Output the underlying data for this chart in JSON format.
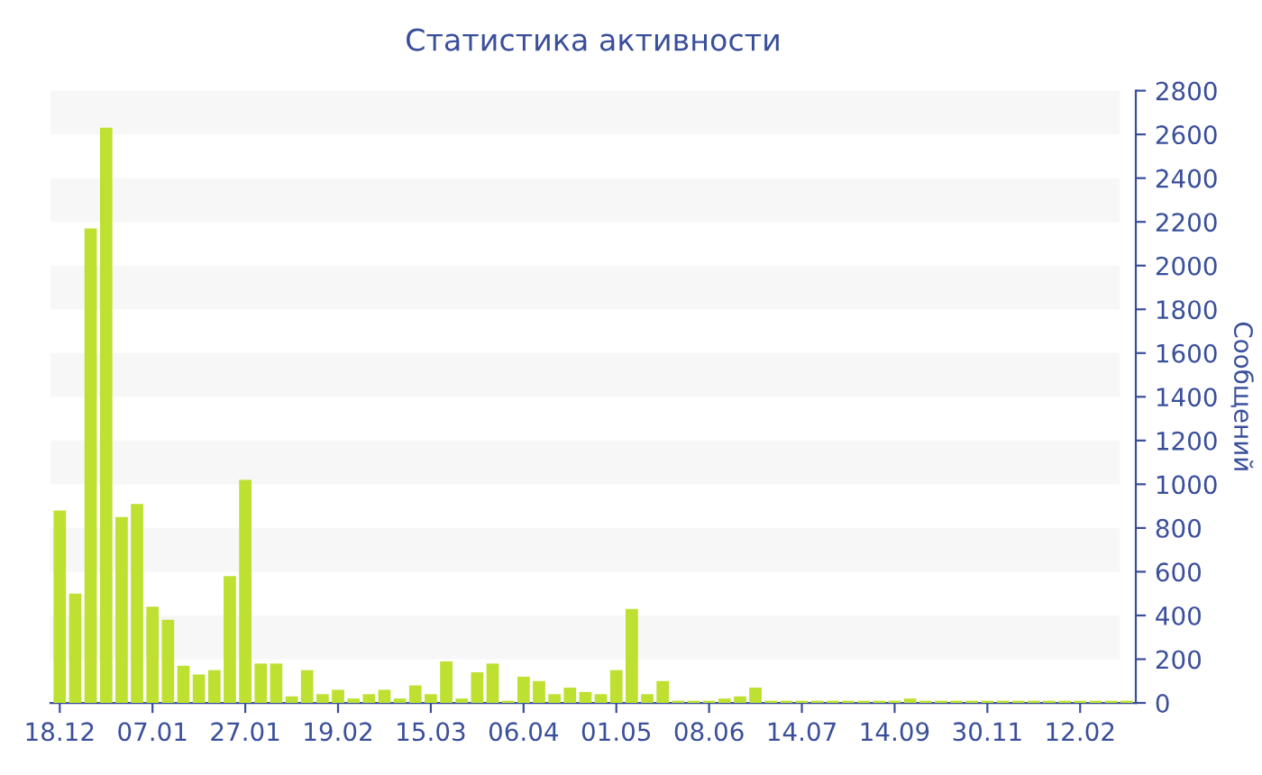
{
  "chart_data": {
    "type": "bar",
    "title": "Статистика активности",
    "ylabel": "Сообщений",
    "categories": [
      "18.12",
      null,
      null,
      null,
      null,
      null,
      "07.01",
      null,
      null,
      null,
      null,
      null,
      "27.01",
      null,
      null,
      null,
      null,
      null,
      "19.02",
      null,
      null,
      null,
      null,
      null,
      "15.03",
      null,
      null,
      null,
      null,
      null,
      "06.04",
      null,
      null,
      null,
      null,
      null,
      "01.05",
      null,
      null,
      null,
      null,
      null,
      "08.06",
      null,
      null,
      null,
      null,
      null,
      "14.07",
      null,
      null,
      null,
      null,
      null,
      "14.09",
      null,
      null,
      null,
      null,
      null,
      "30.11",
      null,
      null,
      null,
      null,
      null,
      "12.02",
      null,
      null,
      null
    ],
    "values": [
      880,
      500,
      2170,
      2630,
      850,
      910,
      440,
      380,
      170,
      130,
      150,
      580,
      1020,
      180,
      180,
      30,
      150,
      40,
      60,
      20,
      40,
      60,
      20,
      80,
      40,
      190,
      20,
      140,
      180,
      10,
      120,
      100,
      40,
      70,
      50,
      40,
      150,
      430,
      40,
      100,
      10,
      10,
      10,
      20,
      30,
      70,
      10,
      10,
      10,
      10,
      10,
      10,
      10,
      10,
      10,
      20,
      10,
      10,
      10,
      10,
      10,
      10,
      10,
      10,
      10,
      10,
      10,
      10,
      10,
      10
    ],
    "color": "#bde031",
    "ylim": [
      0,
      2800
    ],
    "yticks": [
      0,
      200,
      400,
      600,
      800,
      1000,
      1200,
      1400,
      1600,
      1800,
      2000,
      2200,
      2400,
      2600,
      2800
    ],
    "bands": [
      {
        "axis": "y",
        "from": 200,
        "to": 400,
        "color": "#f7f7f7"
      },
      {
        "axis": "y",
        "from": 600,
        "to": 800,
        "color": "#f7f7f7"
      },
      {
        "axis": "y",
        "from": 1000,
        "to": 1200,
        "color": "#f7f7f7"
      },
      {
        "axis": "y",
        "from": 1400,
        "to": 1600,
        "color": "#f7f7f7"
      },
      {
        "axis": "y",
        "from": 1800,
        "to": 2000,
        "color": "#f7f7f7"
      },
      {
        "axis": "y",
        "from": 2200,
        "to": 2400,
        "color": "#f7f7f7"
      },
      {
        "axis": "y",
        "from": 2600,
        "to": 2800,
        "color": "#f7f7f7"
      }
    ]
  }
}
